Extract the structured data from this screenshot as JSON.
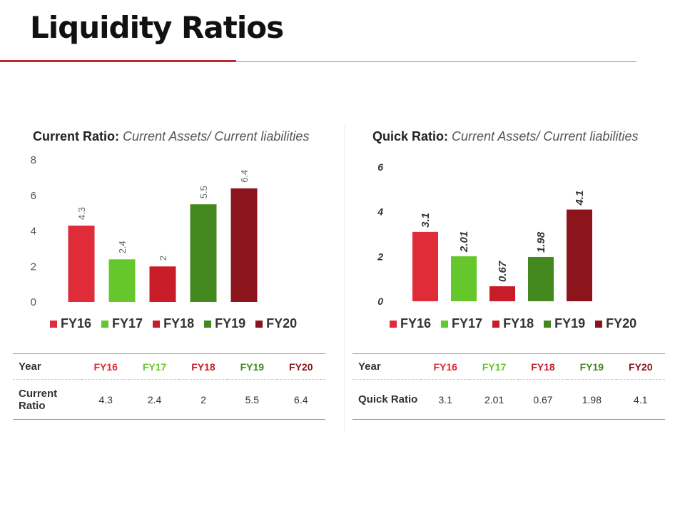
{
  "page": {
    "title": "Liquidity Ratios"
  },
  "colors": {
    "FY16": "#e02b39",
    "FY17": "#66c72c",
    "FY18": "#c81c28",
    "FY19": "#43891f",
    "FY20": "#8c141c"
  },
  "chart_data": [
    {
      "type": "bar",
      "title": "Current Ratio:",
      "subtitle": "Current Assets/ Current liabilities",
      "categories": [
        "FY16",
        "FY17",
        "FY18",
        "FY19",
        "FY20"
      ],
      "values": [
        4.3,
        2.4,
        2,
        5.5,
        6.4
      ],
      "value_labels": [
        "4.3",
        "2.4",
        "2",
        "5.5",
        "6.4"
      ],
      "ylim": [
        0,
        8
      ],
      "yticks": [
        0,
        2,
        4,
        6,
        8
      ],
      "xlabel": "",
      "ylabel": "",
      "legend": "bottom"
    },
    {
      "type": "bar",
      "title": "Quick Ratio:",
      "subtitle": "Current Assets/ Current liabilities",
      "categories": [
        "FY16",
        "FY17",
        "FY18",
        "FY19",
        "FY20"
      ],
      "values": [
        3.1,
        2.01,
        0.67,
        1.98,
        4.1
      ],
      "value_labels": [
        "3.1",
        "2.01",
        "0.67",
        "1.98",
        "4.1"
      ],
      "ylim": [
        0,
        6
      ],
      "yticks": [
        0,
        2,
        4,
        6
      ],
      "xlabel": "",
      "ylabel": "",
      "legend": "bottom"
    }
  ],
  "tables": [
    {
      "header_label": "Year",
      "row_label": "Current Ratio",
      "columns": [
        "FY16",
        "FY17",
        "FY18",
        "FY19",
        "FY20"
      ],
      "values": [
        "4.3",
        "2.4",
        "2",
        "5.5",
        "6.4"
      ]
    },
    {
      "header_label": "Year",
      "row_label": "Quick Ratio",
      "columns": [
        "FY16",
        "FY17",
        "FY18",
        "FY19",
        "FY20"
      ],
      "values": [
        "3.1",
        "2.01",
        "0.67",
        "1.98",
        "4.1"
      ]
    }
  ]
}
